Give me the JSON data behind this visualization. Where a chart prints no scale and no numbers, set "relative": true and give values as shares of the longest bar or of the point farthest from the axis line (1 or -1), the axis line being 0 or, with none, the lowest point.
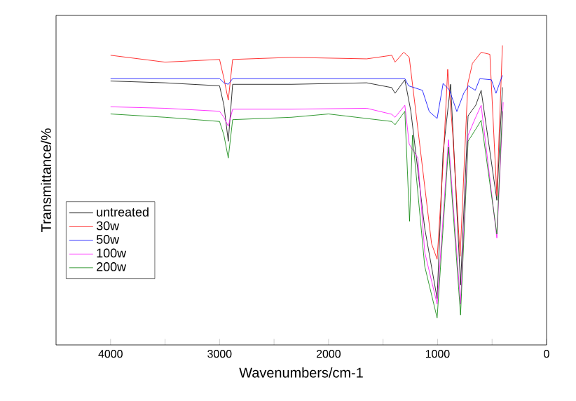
{
  "chart_data": {
    "type": "line",
    "relative": true,
    "xlabel": "Wavenumbers/cm-1",
    "ylabel": "Transmittance/%",
    "xlim": [
      4500,
      0
    ],
    "xticks": [
      4000,
      {
        "value": 3500,
        "label": null
      },
      3000,
      {
        "value": 2500,
        "label": null
      },
      2000,
      {
        "value": 1500,
        "label": null
      },
      1000,
      {
        "value": 500,
        "label": null
      },
      0
    ],
    "legend": "bottom left",
    "marker": "none",
    "line_style": "solid",
    "grid": false,
    "series": [
      {
        "name": "untreated",
        "color": "#000000",
        "x": [
          4000,
          3500,
          3000,
          2960,
          2920,
          2880,
          2340,
          1650,
          1420,
          1390,
          1300,
          1245,
          1118,
          1004,
          950,
          880,
          789,
          720,
          650,
          600,
          456,
          405
        ],
        "values": [
          0.881,
          0.875,
          0.865,
          0.8,
          0.68,
          0.87,
          0.87,
          0.875,
          0.859,
          0.84,
          0.885,
          0.78,
          0.39,
          0.155,
          0.64,
          0.87,
          0.2,
          0.765,
          0.8,
          0.85,
          0.483,
          0.86
        ]
      },
      {
        "name": "30w",
        "color": "#ff0000",
        "x": [
          4000,
          3500,
          3000,
          2960,
          2920,
          2880,
          2340,
          1650,
          1420,
          1390,
          1310,
          1260,
          1200,
          1055,
          1004,
          950,
          907,
          860,
          793,
          722,
          680,
          600,
          520,
          456,
          405
        ],
        "values": [
          0.967,
          0.944,
          0.953,
          0.89,
          0.817,
          0.953,
          0.96,
          0.955,
          0.967,
          0.944,
          0.977,
          0.96,
          0.78,
          0.338,
          0.286,
          0.6,
          0.92,
          0.7,
          0.296,
          0.873,
          0.94,
          0.977,
          0.97,
          0.498,
          1.0
        ]
      },
      {
        "name": "50w",
        "color": "#0000ff",
        "x": [
          4000,
          3500,
          3000,
          2960,
          2920,
          2880,
          2340,
          1650,
          1300,
          1266,
          1139,
          1076,
          1004,
          949,
          890,
          823,
          760,
          717,
          654,
          612,
          506,
          464,
          405
        ],
        "values": [
          0.889,
          0.889,
          0.889,
          0.875,
          0.87,
          0.889,
          0.889,
          0.889,
          0.889,
          0.865,
          0.85,
          0.779,
          0.756,
          0.873,
          0.85,
          0.779,
          0.84,
          0.865,
          0.85,
          0.889,
          0.885,
          0.84,
          0.9
        ]
      },
      {
        "name": "100w",
        "color": "#ff00ff",
        "x": [
          4000,
          3500,
          3000,
          2960,
          2920,
          2880,
          2340,
          1650,
          1420,
          1390,
          1300,
          1260,
          1181,
          1118,
          1004,
          900,
          789,
          720,
          650,
          600,
          456,
          398
        ],
        "values": [
          0.795,
          0.79,
          0.78,
          0.76,
          0.73,
          0.787,
          0.787,
          0.79,
          0.77,
          0.76,
          0.8,
          0.67,
          0.624,
          0.31,
          0.136,
          0.685,
          0.136,
          0.7,
          0.76,
          0.8,
          0.357,
          0.81
        ]
      },
      {
        "name": "200w",
        "color": "#008000",
        "x": [
          4000,
          3500,
          3000,
          2960,
          2920,
          2880,
          2340,
          2000,
          1420,
          1390,
          1300,
          1257,
          1230,
          1118,
          1004,
          900,
          789,
          720,
          650,
          600,
          456,
          405
        ],
        "values": [
          0.771,
          0.76,
          0.746,
          0.7,
          0.624,
          0.752,
          0.76,
          0.771,
          0.746,
          0.735,
          0.78,
          0.413,
          0.7,
          0.263,
          0.09,
          0.66,
          0.1,
          0.68,
          0.72,
          0.75,
          0.37,
          0.78
        ]
      }
    ]
  }
}
